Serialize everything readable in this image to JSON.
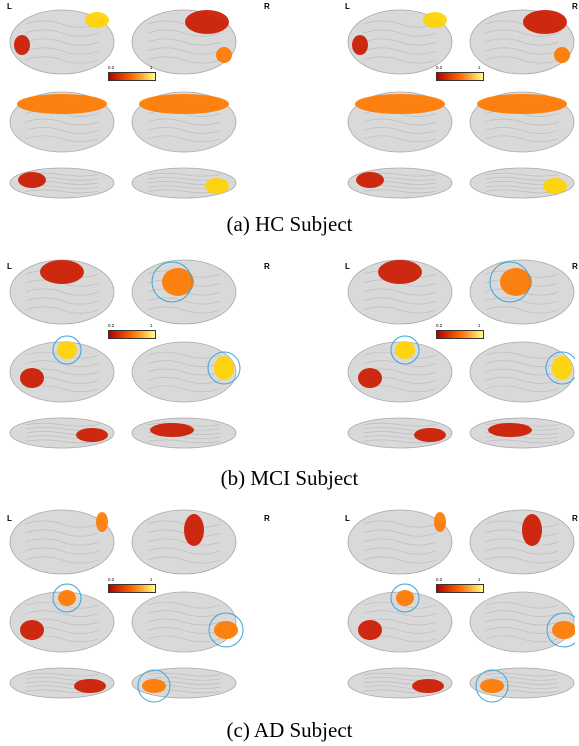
{
  "figure": {
    "rows": [
      {
        "caption": "(a) HC Subject",
        "panels": [
          {
            "label_left": "L",
            "label_right": "R"
          },
          {
            "label_left": "L",
            "label_right": "R"
          }
        ]
      },
      {
        "caption": "(b) MCI Subject",
        "panels": [
          {
            "label_left": "L",
            "label_right": "R"
          },
          {
            "label_left": "L",
            "label_right": "R"
          }
        ]
      },
      {
        "caption": "(c) AD Subject",
        "panels": [
          {
            "label_left": "L",
            "label_right": "R"
          },
          {
            "label_left": "L",
            "label_right": "R"
          }
        ]
      }
    ],
    "colorbar": {
      "min_label": "0.2",
      "max_label": "1",
      "low_color": "#b50000",
      "mid_color": "#ff6a00",
      "high_color": "#ffff80"
    },
    "colors": {
      "brain": "#d9d9d9",
      "brain_shadow": "#a8a8a8",
      "highlight_circle": "#3aa6d8"
    }
  }
}
